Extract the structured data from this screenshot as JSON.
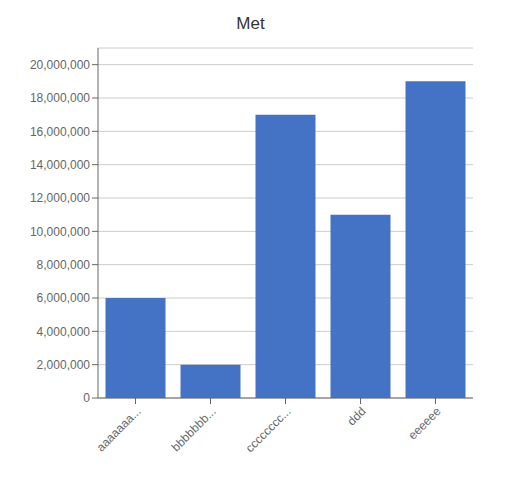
{
  "chart_data": {
    "type": "bar",
    "title": "Met",
    "categories": [
      "aaaaaaa...",
      "bbbbbbb...",
      "cccccccc...",
      "ddd",
      "eeeeee"
    ],
    "values": [
      6000000,
      2000000,
      17000000,
      11000000,
      19000000
    ],
    "color": "#4472C4",
    "ylim": [
      0,
      21000000
    ],
    "yticks": [
      0,
      {
        "value": 2000000,
        "label": "2,000,000"
      },
      {
        "value": 4000000,
        "label": "4,000,000"
      },
      {
        "value": 6000000,
        "label": "6,000,000"
      },
      {
        "value": 8000000,
        "label": "8,000,000"
      },
      {
        "value": 10000000,
        "label": "10,000,000"
      },
      {
        "value": 12000000,
        "label": "12,000,000"
      },
      {
        "value": 14000000,
        "label": "14,000,000"
      },
      {
        "value": 16000000,
        "label": "16,000,000"
      },
      {
        "value": 18000000,
        "label": "18,000,000"
      },
      {
        "value": 20000000,
        "label": "20,000,000"
      }
    ],
    "grid": true
  }
}
